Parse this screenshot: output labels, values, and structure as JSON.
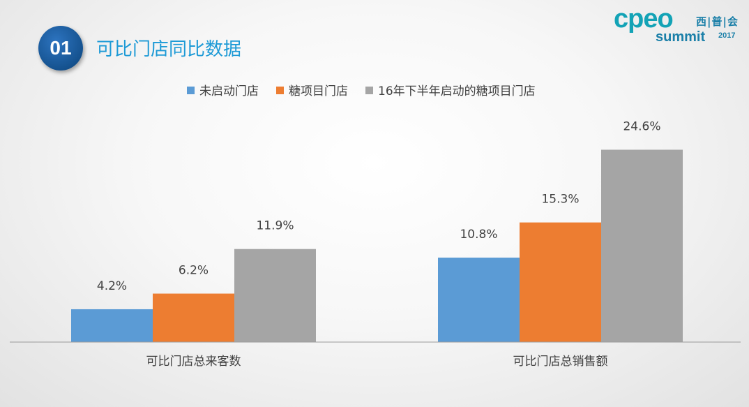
{
  "header": {
    "badge_number": "01",
    "title": "可比门店同比数据"
  },
  "logo": {
    "brand": "cpeo",
    "chinese": "西|普|会",
    "summit": "summit",
    "year": "2017"
  },
  "chart_data": {
    "type": "bar",
    "categories": [
      "可比门店总来客数",
      "可比门店总销售额"
    ],
    "series": [
      {
        "name": "未启动门店",
        "values": [
          4.2,
          10.8
        ],
        "labels": [
          "4.2%",
          "10.8%"
        ],
        "color": "#5b9bd5"
      },
      {
        "name": "糖项目门店",
        "values": [
          6.2,
          15.3
        ],
        "labels": [
          "6.2%",
          "15.3%"
        ],
        "color": "#ed7d31"
      },
      {
        "name": "16年下半年启动的糖项目门店",
        "values": [
          11.9,
          24.6
        ],
        "labels": [
          "11.9%",
          "24.6%"
        ],
        "color": "#a5a5a5"
      }
    ],
    "unit": "%",
    "ylim": [
      0,
      25
    ],
    "grid": false,
    "legend_position": "top"
  }
}
